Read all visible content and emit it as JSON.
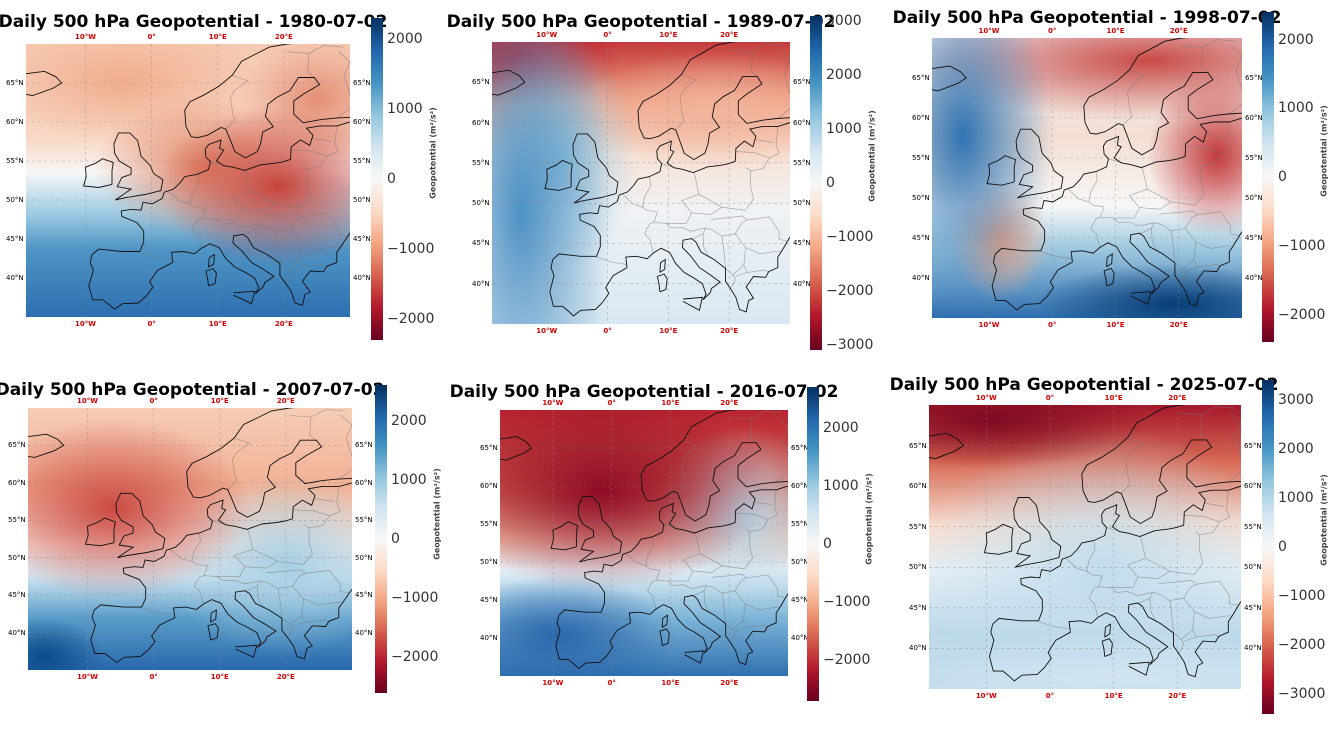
{
  "colorbar_label": "Geopotential (m²/s²)",
  "lon_ticks": [
    "10°W",
    "0°",
    "10°E",
    "20°E"
  ],
  "lat_ticks": [
    "40°N",
    "45°N",
    "50°N",
    "55°N",
    "60°N",
    "65°N"
  ],
  "colormap": [
    "#67001f",
    "#b2182b",
    "#d6604d",
    "#f4a582",
    "#fddbc7",
    "#f7f7f7",
    "#d1e5f0",
    "#92c5de",
    "#4393c3",
    "#2166ac",
    "#053061"
  ],
  "chart_data": [
    {
      "type": "heatmap",
      "title": "Daily 500 hPa Geopotential - 1980-07-02",
      "colorbar_ticks": [
        "2000",
        "1000",
        "0",
        "−1000",
        "−2000"
      ],
      "vlim": [
        -2300,
        2300
      ]
    },
    {
      "type": "heatmap",
      "title": "Daily 500 hPa Geopotential - 1989-07-02",
      "colorbar_ticks": [
        "3000",
        "2000",
        "1000",
        "0",
        "−1000",
        "−2000",
        "−3000"
      ],
      "vlim": [
        -3100,
        3100
      ]
    },
    {
      "type": "heatmap",
      "title": "Daily 500 hPa Geopotential - 1998-07-02",
      "colorbar_ticks": [
        "2000",
        "1000",
        "0",
        "−1000",
        "−2000"
      ],
      "vlim": [
        -2400,
        2400
      ]
    },
    {
      "type": "heatmap",
      "title": "Daily 500 hPa Geopotential - 2007-07-02",
      "colorbar_ticks": [
        "2000",
        "1000",
        "0",
        "−1000",
        "−2000"
      ],
      "vlim": [
        -2600,
        2600
      ]
    },
    {
      "type": "heatmap",
      "title": "Daily 500 hPa Geopotential - 2016-07-02",
      "colorbar_ticks": [
        "2000",
        "1000",
        "0",
        "−1000",
        "−2000"
      ],
      "vlim": [
        -2700,
        2700
      ]
    },
    {
      "type": "heatmap",
      "title": "Daily 500 hPa Geopotential - 2025-07-02",
      "colorbar_ticks": [
        "3000",
        "2000",
        "1000",
        "0",
        "−1000",
        "−2000",
        "−3000"
      ],
      "vlim": [
        -3400,
        3400
      ]
    }
  ]
}
